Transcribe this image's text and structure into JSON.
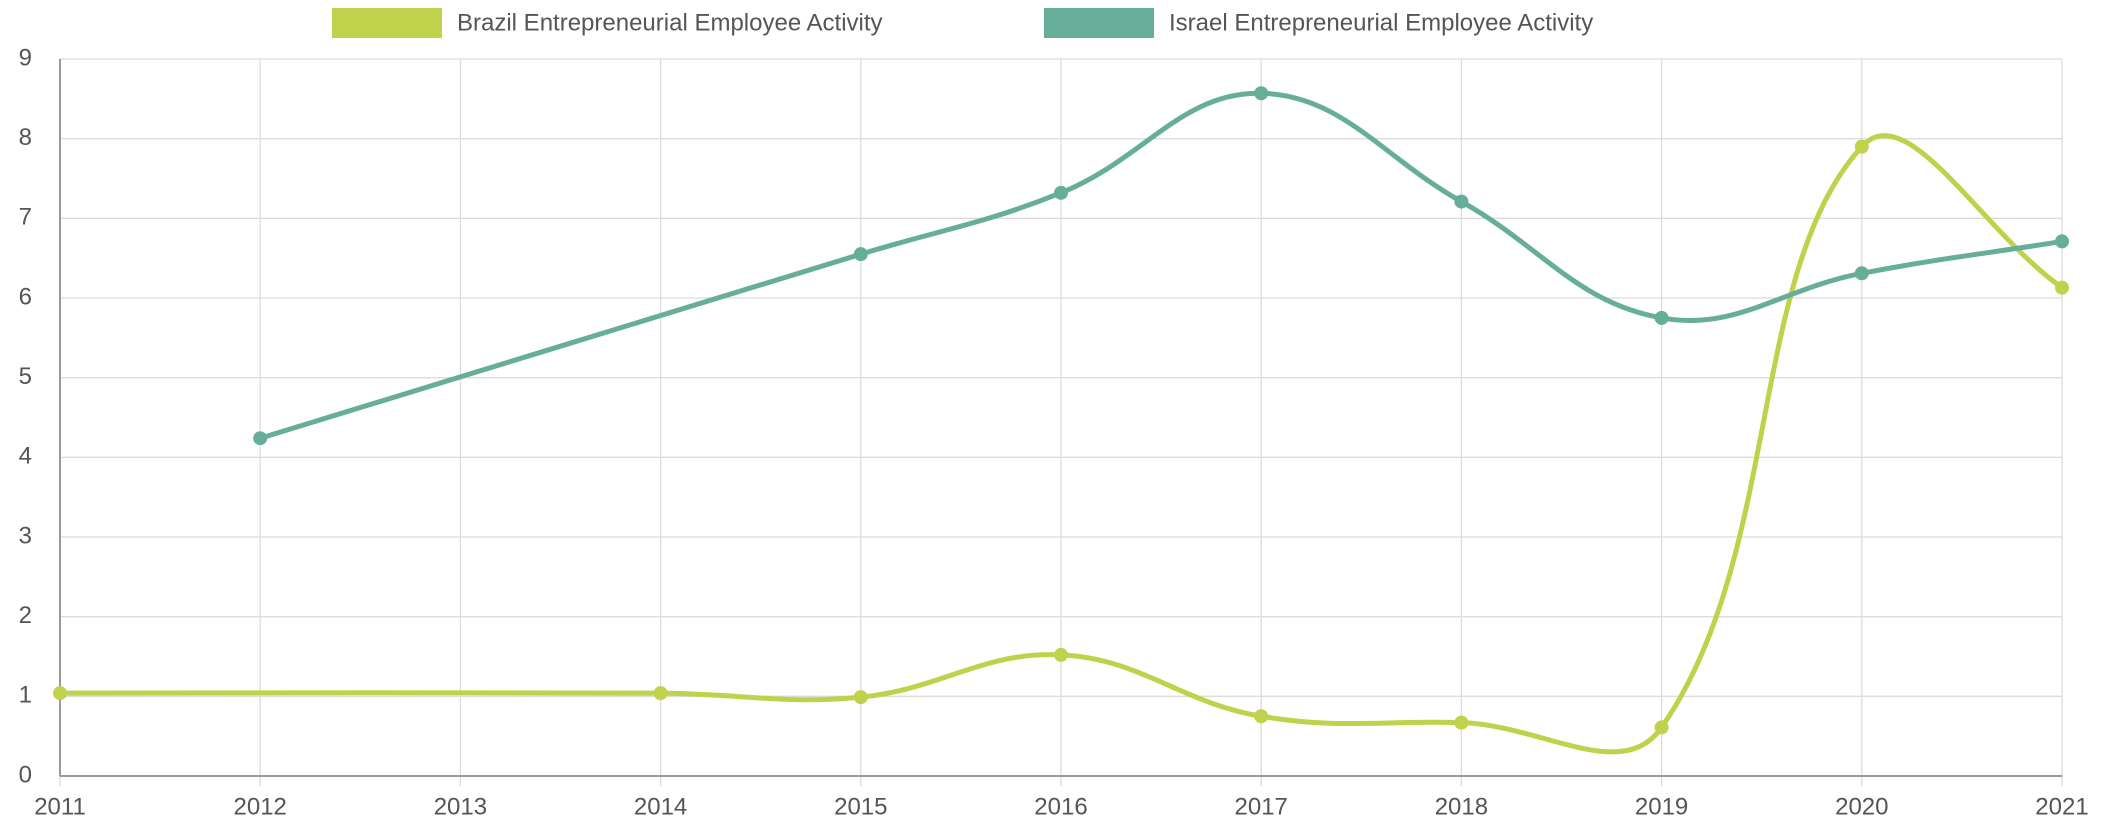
{
  "chart_data": {
    "type": "line",
    "xlim": [
      2011,
      2021
    ],
    "xticks": [
      2011,
      2012,
      2013,
      2014,
      2015,
      2016,
      2017,
      2018,
      2019,
      2020,
      2021
    ],
    "ylim": [
      0,
      9
    ],
    "yticks": [
      0,
      1,
      2,
      3,
      4,
      5,
      6,
      7,
      8,
      9
    ],
    "grid": true,
    "legend": "top",
    "series": [
      {
        "name": "Brazil Entrepreneurial Employee Activity",
        "color": "#c0d14b",
        "x": [
          2011,
          2014,
          2015,
          2016,
          2017,
          2018,
          2019,
          2020,
          2021
        ],
        "values": [
          1.04,
          1.04,
          0.99,
          1.52,
          0.75,
          0.67,
          0.61,
          7.9,
          6.13
        ]
      },
      {
        "name": "Israel Entrepreneurial Employee Activity",
        "color": "#66ae9a",
        "x": [
          2012,
          2015,
          2016,
          2017,
          2018,
          2019,
          2020,
          2021
        ],
        "values": [
          4.24,
          6.55,
          7.32,
          8.57,
          7.21,
          5.75,
          6.31,
          6.71
        ]
      }
    ]
  }
}
